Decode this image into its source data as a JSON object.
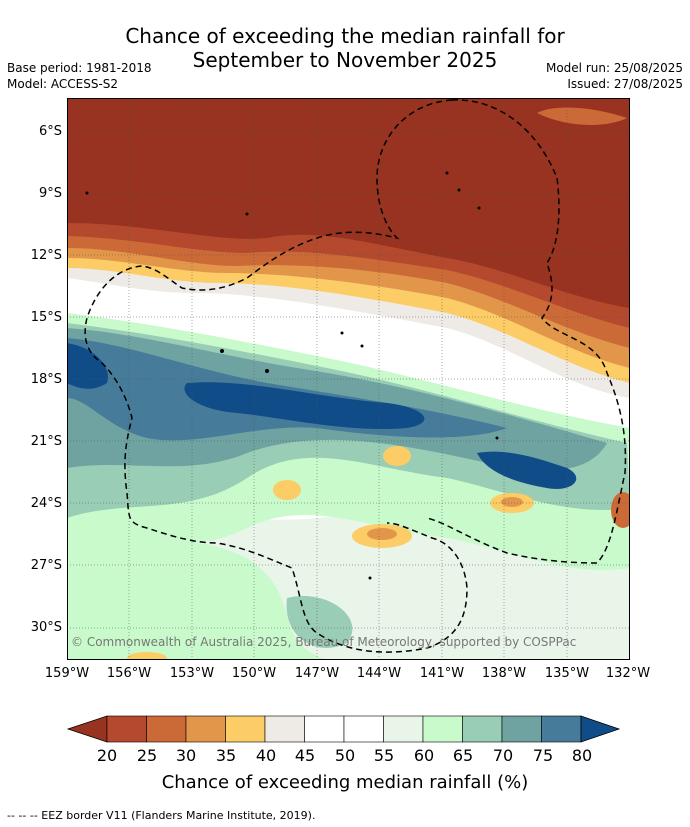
{
  "title_line1": "Chance of exceeding the median rainfall for",
  "title_line2": "September to November 2025",
  "base_period": "Base period: 1981-2018",
  "model": "Model: ACCESS-S2",
  "model_run": "Model run: 25/08/2025",
  "issued": "Issued: 27/08/2025",
  "copyright": "© Commonwealth of Australia 2025, Bureau of Meteorology, supported by COSPPac",
  "lat_labels": [
    "6°S",
    "9°S",
    "12°S",
    "15°S",
    "18°S",
    "21°S",
    "24°S",
    "27°S",
    "30°S"
  ],
  "lon_labels": [
    "159°W",
    "156°W",
    "153°W",
    "150°W",
    "147°W",
    "144°W",
    "141°W",
    "138°W",
    "135°W",
    "132°W"
  ],
  "colorbar": {
    "title": "Chance of exceeding median rainfall (%)",
    "ticks": [
      "20",
      "25",
      "30",
      "35",
      "40",
      "45",
      "50",
      "55",
      "60",
      "65",
      "70",
      "75",
      "80"
    ],
    "colors": [
      "#973320",
      "#b5492d",
      "#cc6a37",
      "#e1964a",
      "#fccc66",
      "#eeebe6",
      "#ffffff",
      "#ffffff",
      "#eaf5ea",
      "#c8facc",
      "#99cdb5",
      "#6fa3a1",
      "#467c99",
      "#104c87"
    ]
  },
  "footnote": "--  --  -- EEZ border V11 (Flanders Marine Institute, 2019)."
}
